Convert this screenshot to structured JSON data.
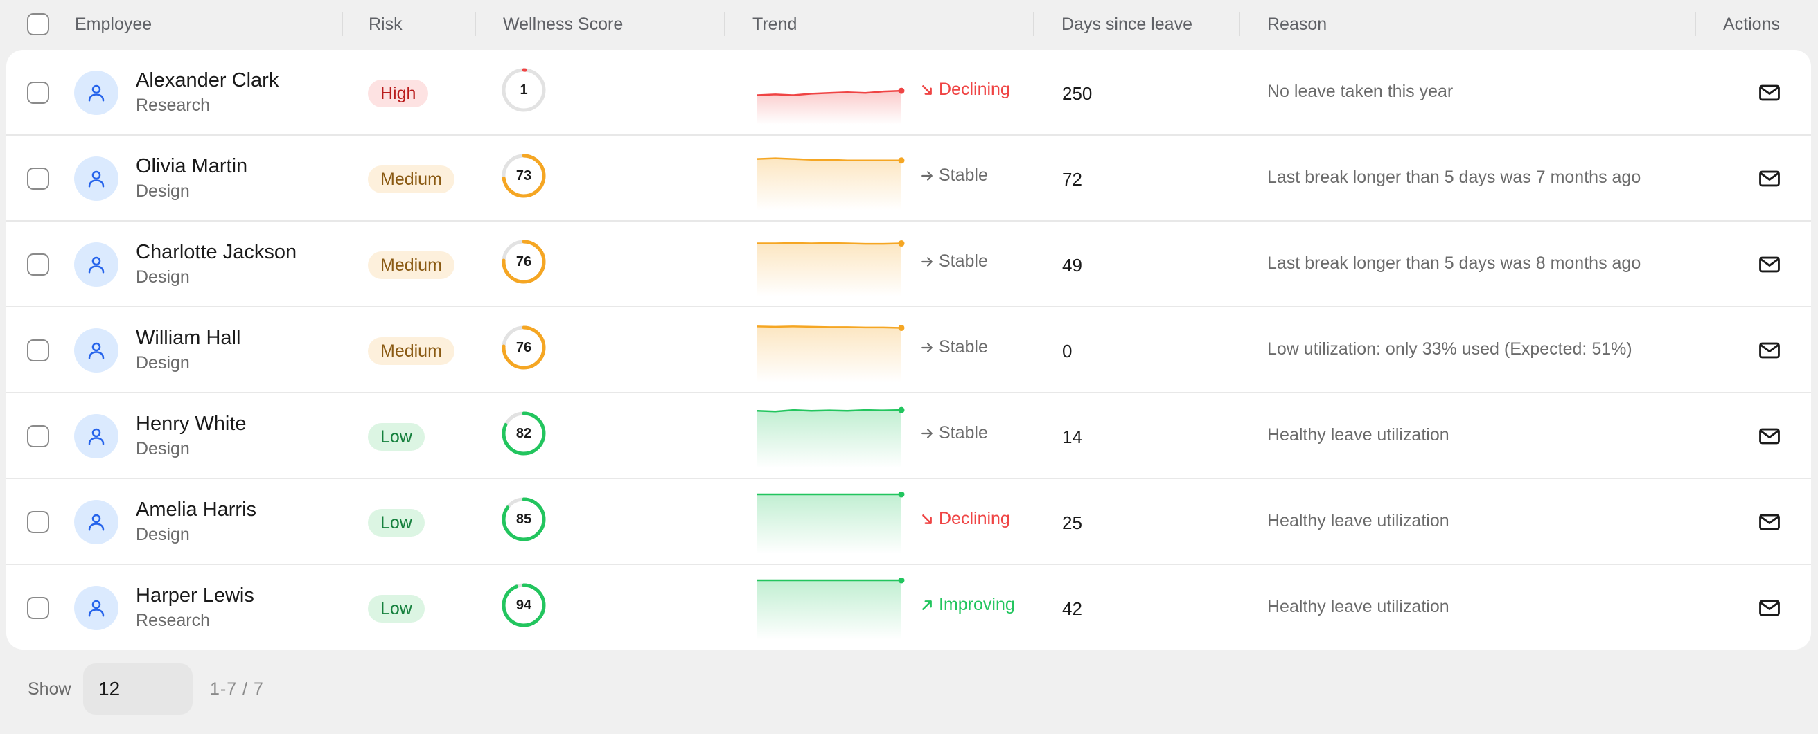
{
  "header": {
    "employee": "Employee",
    "risk": "Risk",
    "wellness": "Wellness Score",
    "trend": "Trend",
    "days": "Days since leave",
    "reason": "Reason",
    "actions": "Actions"
  },
  "colors": {
    "high": "#ef4444",
    "medium": "#f5a623",
    "low": "#22c55e",
    "ring_track": "#e2e2e2"
  },
  "icons": {
    "avatar": "user-icon",
    "action": "mail-icon",
    "declining": "arrow-down-right-icon",
    "stable": "arrow-right-icon",
    "improving": "arrow-up-right-icon"
  },
  "rows": [
    {
      "name": "Alexander Clark",
      "dept": "Research",
      "risk": "High",
      "risk_level": "high",
      "score": "1",
      "score_value": 1,
      "trend": "Declining",
      "trend_kind": "declining",
      "days": "250",
      "reason": "No leave taken this year",
      "spark": [
        0.42,
        0.43,
        0.42,
        0.44,
        0.45,
        0.46,
        0.45,
        0.47,
        0.48
      ]
    },
    {
      "name": "Olivia Martin",
      "dept": "Design",
      "risk": "Medium",
      "risk_level": "medium",
      "score": "73",
      "score_value": 73,
      "trend": "Stable",
      "trend_kind": "stable",
      "days": "72",
      "reason": "Last break longer than 5 days was 7 months ago",
      "spark": [
        0.72,
        0.73,
        0.72,
        0.71,
        0.71,
        0.7,
        0.7,
        0.7,
        0.7
      ]
    },
    {
      "name": "Charlotte Jackson",
      "dept": "Design",
      "risk": "Medium",
      "risk_level": "medium",
      "score": "76",
      "score_value": 76,
      "trend": "Stable",
      "trend_kind": "stable",
      "days": "49",
      "reason": "Last break longer than 5 days was 8 months ago",
      "spark": [
        0.74,
        0.74,
        0.745,
        0.74,
        0.745,
        0.74,
        0.735,
        0.735,
        0.74
      ]
    },
    {
      "name": "William Hall",
      "dept": "Design",
      "risk": "Medium",
      "risk_level": "medium",
      "score": "76",
      "score_value": 76,
      "trend": "Stable",
      "trend_kind": "stable",
      "days": "0",
      "reason": "Low utilization: only 33% used (Expected: 51%)",
      "spark": [
        0.78,
        0.775,
        0.78,
        0.775,
        0.77,
        0.77,
        0.765,
        0.765,
        0.76
      ]
    },
    {
      "name": "Henry White",
      "dept": "Design",
      "risk": "Low",
      "risk_level": "low",
      "score": "82",
      "score_value": 82,
      "trend": "Stable",
      "trend_kind": "stable",
      "days": "14",
      "reason": "Healthy leave utilization",
      "spark": [
        0.8,
        0.79,
        0.81,
        0.8,
        0.805,
        0.8,
        0.81,
        0.805,
        0.81
      ]
    },
    {
      "name": "Amelia Harris",
      "dept": "Design",
      "risk": "Low",
      "risk_level": "low",
      "score": "85",
      "score_value": 85,
      "trend": "Declining",
      "trend_kind": "declining",
      "days": "25",
      "reason": "Healthy leave utilization",
      "spark": [
        0.84,
        0.845,
        0.85,
        0.845,
        0.845,
        0.84,
        0.84,
        0.845,
        0.85
      ]
    },
    {
      "name": "Harper Lewis",
      "dept": "Research",
      "risk": "Low",
      "risk_level": "low",
      "score": "94",
      "score_value": 94,
      "trend": "Improving",
      "trend_kind": "improving",
      "days": "42",
      "reason": "Healthy leave utilization",
      "spark": [
        0.93,
        0.93,
        0.935,
        0.93,
        0.935,
        0.94,
        0.935,
        0.935,
        0.94
      ]
    }
  ],
  "footer": {
    "show_label": "Show",
    "page_size": "12",
    "range": "1-7 / 7"
  }
}
